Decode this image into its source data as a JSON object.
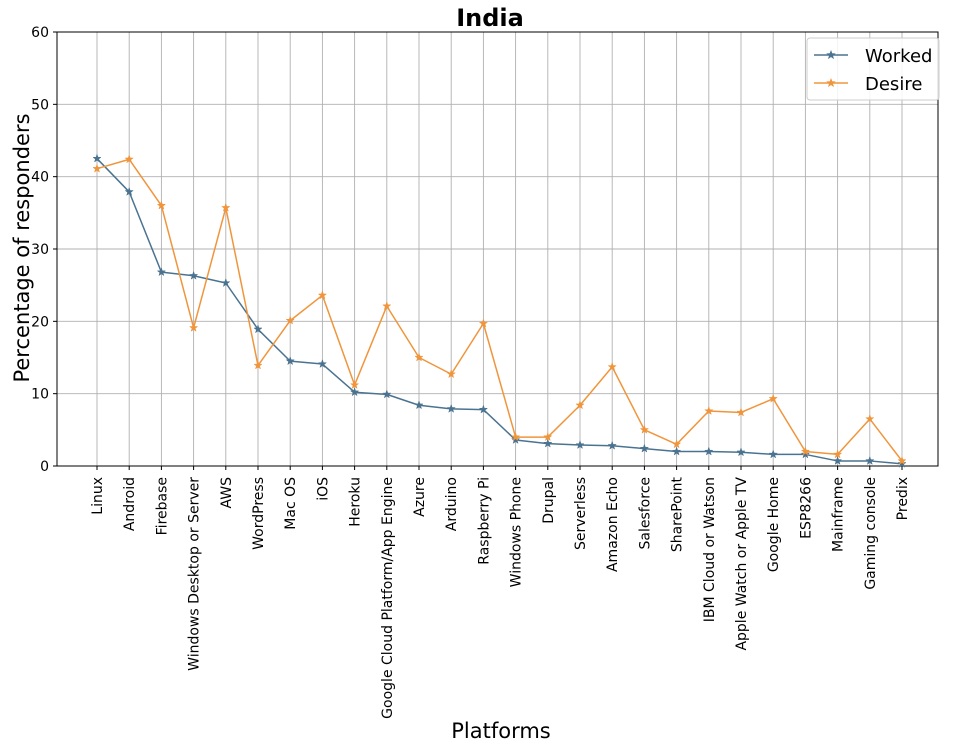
{
  "chart_data": {
    "type": "line",
    "title": "India",
    "xlabel": "Platforms",
    "ylabel": "Percentage of responders",
    "ylim": [
      0,
      60
    ],
    "yticks": [
      0,
      10,
      20,
      30,
      40,
      50,
      60
    ],
    "grid": true,
    "legend_position": "top-right",
    "categories": [
      "Linux",
      "Android",
      "Firebase",
      "Windows Desktop or Server",
      "AWS",
      "WordPress",
      "Mac OS",
      "iOS",
      "Heroku",
      "Google Cloud Platform/App Engine",
      "Azure",
      "Arduino",
      "Raspberry Pi",
      "Windows Phone",
      "Drupal",
      "Serverless",
      "Amazon Echo",
      "Salesforce",
      "SharePoint",
      "IBM Cloud or Watson",
      "Apple Watch or Apple TV",
      "Google Home",
      "ESP8266",
      "Mainframe",
      "Gaming console",
      "Predix"
    ],
    "series": [
      {
        "name": "Worked",
        "color": "#4a7391",
        "marker": "star",
        "values": [
          42.5,
          37.9,
          26.8,
          26.3,
          25.3,
          18.9,
          14.5,
          14.1,
          10.2,
          9.9,
          8.4,
          7.9,
          7.8,
          3.6,
          3.1,
          2.9,
          2.8,
          2.4,
          2.0,
          2.0,
          1.9,
          1.6,
          1.6,
          0.7,
          0.7,
          0.3
        ]
      },
      {
        "name": "Desire",
        "color": "#f0953b",
        "marker": "star",
        "values": [
          41.1,
          42.4,
          36.0,
          19.1,
          35.7,
          13.9,
          20.1,
          23.6,
          11.2,
          22.1,
          15.0,
          12.7,
          19.7,
          4.0,
          4.0,
          8.4,
          13.7,
          5.0,
          3.0,
          7.6,
          7.4,
          9.3,
          2.0,
          1.6,
          6.5,
          0.7
        ]
      }
    ]
  }
}
